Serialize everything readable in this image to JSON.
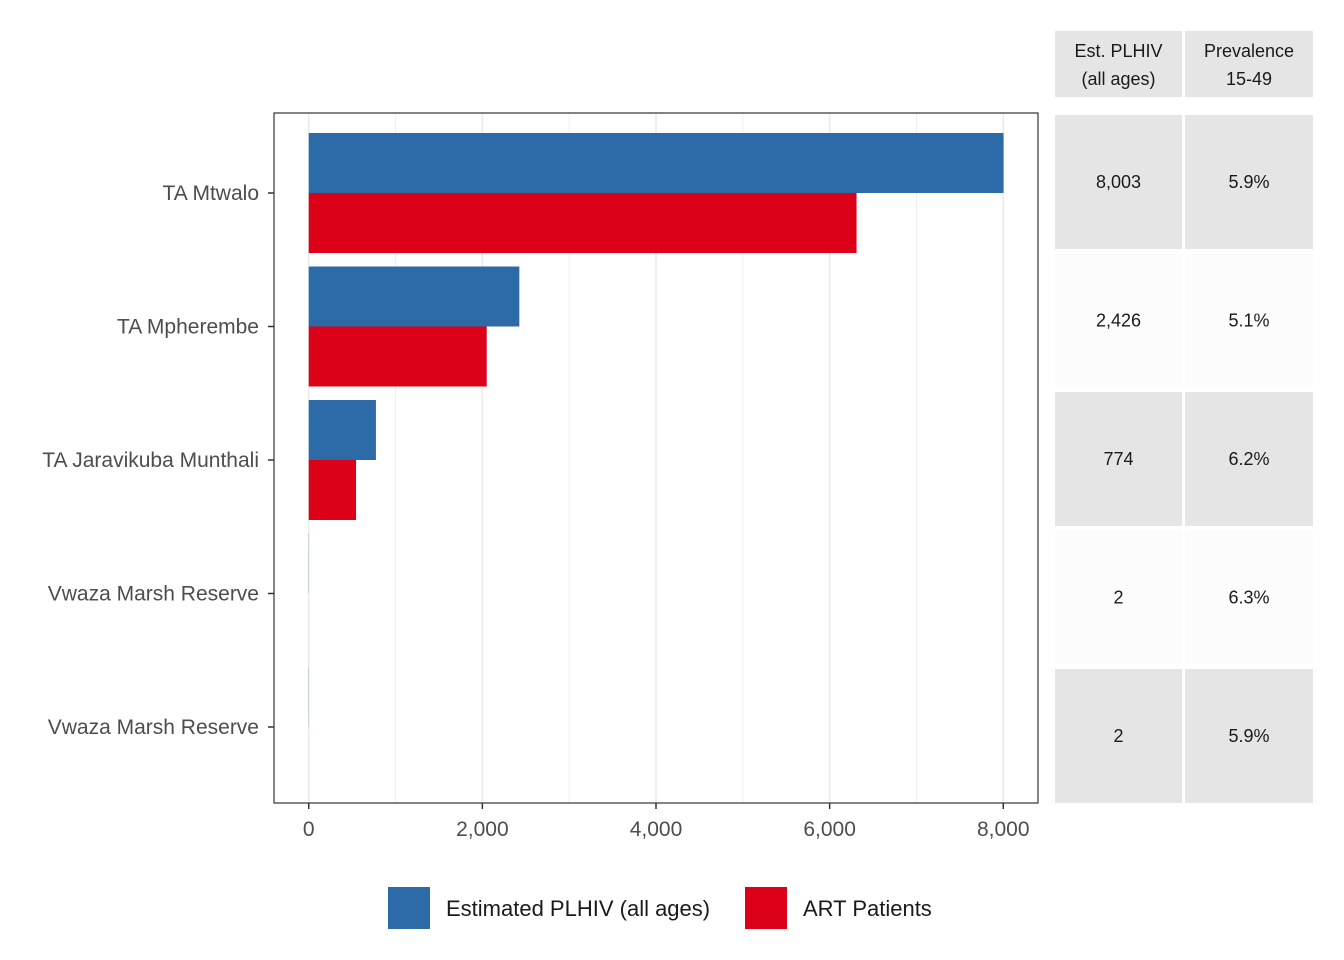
{
  "chart_data": {
    "type": "bar",
    "orientation": "horizontal",
    "categories": [
      "TA Mtwalo",
      "TA Mpherembe",
      "TA Jaravikuba Munthali",
      "Vwaza Marsh Reserve",
      "Vwaza Marsh Reserve"
    ],
    "series": [
      {
        "name": "Estimated PLHIV (all ages)",
        "color": "#2c6aa8",
        "values": [
          8003,
          2426,
          774,
          2,
          2
        ]
      },
      {
        "name": "ART Patients",
        "color": "#dc0019",
        "values": [
          6310,
          2050,
          545,
          0,
          0
        ]
      }
    ],
    "xlim": [
      -400,
      8400
    ],
    "xticks": [
      0,
      2000,
      4000,
      6000,
      8000
    ],
    "xtick_labels": [
      "0",
      "2,000",
      "4,000",
      "6,000",
      "8,000"
    ],
    "grid": true,
    "legend_position": "bottom",
    "table": {
      "headers": [
        [
          "Est. PLHIV",
          "(all ages)"
        ],
        [
          "Prevalence",
          "15-49"
        ]
      ],
      "rows": [
        [
          "8,003",
          "5.9%"
        ],
        [
          "2,426",
          "5.1%"
        ],
        [
          "774",
          "6.2%"
        ],
        [
          "2",
          "6.3%"
        ],
        [
          "2",
          "5.9%"
        ]
      ]
    }
  }
}
